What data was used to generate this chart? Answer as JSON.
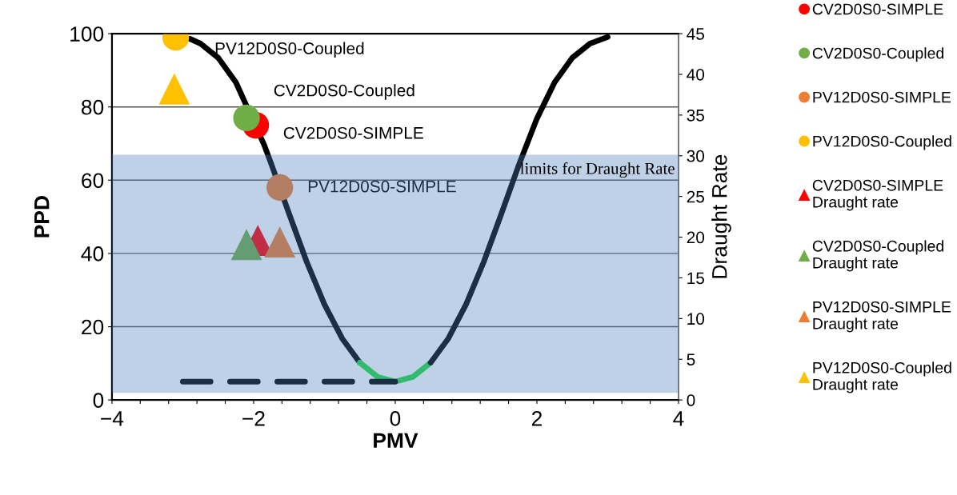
{
  "chart_data": {
    "type": "line",
    "xlabel": "PMV",
    "ylabel": "PPD",
    "y2label": "Draught Rate",
    "xlim": [
      -4,
      4
    ],
    "xticks": [
      -4,
      {
        "value": -3.6,
        "label": null
      },
      {
        "value": -3.2,
        "label": null
      },
      {
        "value": -2.8,
        "label": null
      },
      {
        "value": -2.4,
        "label": null
      },
      -2,
      {
        "value": -1.6,
        "label": null
      },
      {
        "value": -1.2,
        "label": null
      },
      {
        "value": -0.8,
        "label": null
      },
      {
        "value": -0.4,
        "label": null
      },
      0,
      {
        "value": 0.4,
        "label": null
      },
      {
        "value": 0.8,
        "label": null
      },
      {
        "value": 1.2,
        "label": null
      },
      {
        "value": 1.6,
        "label": null
      },
      2,
      {
        "value": 2.4,
        "label": null
      },
      {
        "value": 2.8,
        "label": null
      },
      {
        "value": 3.2,
        "label": null
      },
      {
        "value": 3.6,
        "label": null
      },
      4
    ],
    "ylim": [
      0,
      100
    ],
    "yticks": [
      0,
      20,
      40,
      60,
      80,
      100
    ],
    "y2lim": [
      0,
      45
    ],
    "y2ticks": [
      0,
      5,
      10,
      15,
      20,
      25,
      30,
      35,
      40,
      45
    ],
    "grid": "y",
    "legend": "top right",
    "series": [
      {
        "color": "#000000",
        "x": [
          -2.9,
          -2.75,
          -2.5,
          -2.25,
          -1.85,
          -1.75,
          -1.5,
          -1.25,
          -1,
          -0.75,
          -0.5
        ],
        "values": [
          98.6,
          97.3,
          93.4,
          86.7,
          69.6,
          64.4,
          50.9,
          37.7,
          26.1,
          16.8,
          10.2
        ]
      },
      {
        "color": "#22dd44",
        "x": [
          -0.5,
          -0.25,
          0,
          0.25,
          0.5
        ],
        "values": [
          10.2,
          6.3,
          5,
          6.3,
          10.2
        ]
      },
      {
        "color": "#000000",
        "x": [
          0.5,
          0.75,
          1,
          1.25,
          1.5,
          1.75,
          2,
          2.25,
          2.5,
          2.75,
          3
        ],
        "values": [
          10.2,
          16.8,
          26.1,
          37.7,
          50.9,
          64.4,
          76.8,
          86.7,
          93.4,
          97.3,
          99.1
        ]
      },
      {
        "color": "#000000",
        "line_style": "dashed",
        "x": [
          -3,
          0
        ],
        "values": [
          5,
          5
        ]
      },
      {
        "type": "scatter",
        "name": "CV2D0S0-SIMPLE",
        "marker": "circle",
        "color": "#ff0000",
        "x": [
          -1.97
        ],
        "values": [
          75
        ]
      },
      {
        "type": "scatter",
        "name": "CV2D0S0-Coupled",
        "marker": "circle",
        "color": "#70ad47",
        "x": [
          -2.1
        ],
        "values": [
          77
        ]
      },
      {
        "type": "scatter",
        "name": "PV12D0S0-SIMPLE",
        "marker": "circle",
        "color": "#ed7d31",
        "x": [
          -1.63
        ],
        "values": [
          58
        ]
      },
      {
        "type": "scatter",
        "name": "PV12D0S0-Coupled",
        "marker": "circle",
        "color": "#ffc000",
        "x": [
          -3.1
        ],
        "values": [
          99
        ]
      },
      {
        "type": "scatter",
        "name": "CV2D0S0-SIMPLE\nDraught rate",
        "marker": "triangle",
        "axis": "y2",
        "color": "#ff0000",
        "x": [
          -1.94
        ],
        "values": [
          19.6
        ]
      },
      {
        "type": "scatter",
        "name": "CV2D0S0-Coupled\nDraught rate",
        "marker": "triangle",
        "axis": "y2",
        "color": "#70ad47",
        "x": [
          -2.1
        ],
        "values": [
          19.1
        ]
      },
      {
        "type": "scatter",
        "name": "PV12D0S0-SIMPLE\nDraught rate",
        "marker": "triangle",
        "axis": "y2",
        "color": "#ed7d31",
        "x": [
          -1.63
        ],
        "values": [
          19.4
        ]
      },
      {
        "type": "scatter",
        "name": "PV12D0S0-Coupled\nDraught rate",
        "marker": "triangle",
        "axis": "y2",
        "color": "#ffc000",
        "x": [
          -3.12
        ],
        "values": [
          38.2
        ]
      }
    ],
    "bands": [
      {
        "axis": "y2",
        "from": 1,
        "to": 30,
        "label": "limits for Draught Rate",
        "color": "#4f81bd"
      }
    ],
    "annotations": [
      "PV12D0S0-Coupled",
      "CV2D0S0-Coupled",
      "CV2D0S0-SIMPLE",
      "PV12D0S0-SIMPLE"
    ]
  }
}
